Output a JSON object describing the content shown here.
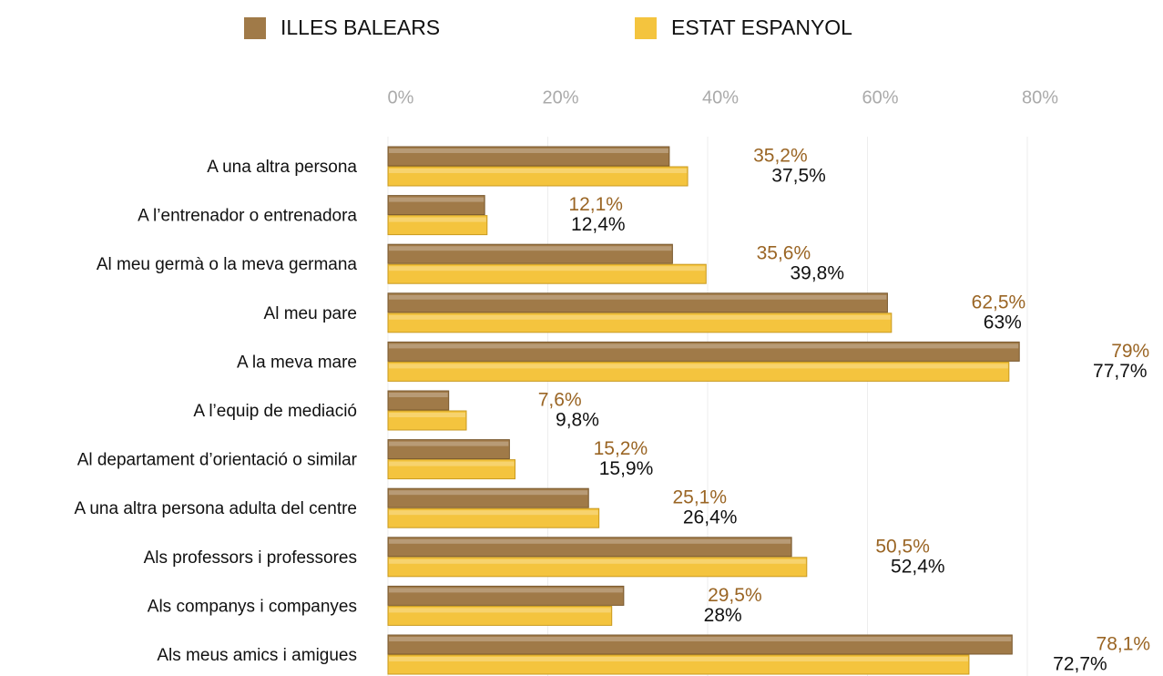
{
  "chart_data": {
    "type": "hbar",
    "categories": [
      "A una altra persona",
      "A l’entrenador o entrenadora",
      "Al meu germà o la meva germana",
      "Al meu pare",
      "A la meva mare",
      "A l’equip de mediació",
      "Al departament d’orientació o similar",
      "A una altra persona adulta del centre",
      "Als professors i professores",
      "Als companys i companyes",
      "Als meus amics i amigues"
    ],
    "series": [
      {
        "name": "ILLES BALEARS",
        "color": "#a07a48",
        "label_color": "#9a6524",
        "values": [
          35.2,
          12.1,
          35.6,
          62.5,
          79,
          7.6,
          15.2,
          25.1,
          50.5,
          29.5,
          78.1
        ],
        "value_labels": [
          "35,2%",
          "12,1%",
          "35,6%",
          "62,5%",
          "79%",
          "7,6%",
          "15,2%",
          "25,1%",
          "50,5%",
          "29,5%",
          "78,1%"
        ]
      },
      {
        "name": "ESTAT ESPANYOL",
        "color": "#f4c43e",
        "label_color": "#111111",
        "values": [
          37.5,
          12.4,
          39.8,
          63,
          77.7,
          9.8,
          15.9,
          26.4,
          52.4,
          28,
          72.7
        ],
        "value_labels": [
          "37,5%",
          "12,4%",
          "39,8%",
          "63%",
          "77,7%",
          "9,8%",
          "15,9%",
          "26,4%",
          "52,4%",
          "28%",
          "72,7%"
        ]
      }
    ],
    "xlim": [
      0,
      80
    ],
    "xticks": [
      {
        "value": 0,
        "label": "0%"
      },
      {
        "value": 20,
        "label": "20%"
      },
      {
        "value": 40,
        "label": "40%"
      },
      {
        "value": 60,
        "label": "60%"
      },
      {
        "value": 80,
        "label": "80%"
      }
    ],
    "grid": true,
    "legend": "top"
  }
}
